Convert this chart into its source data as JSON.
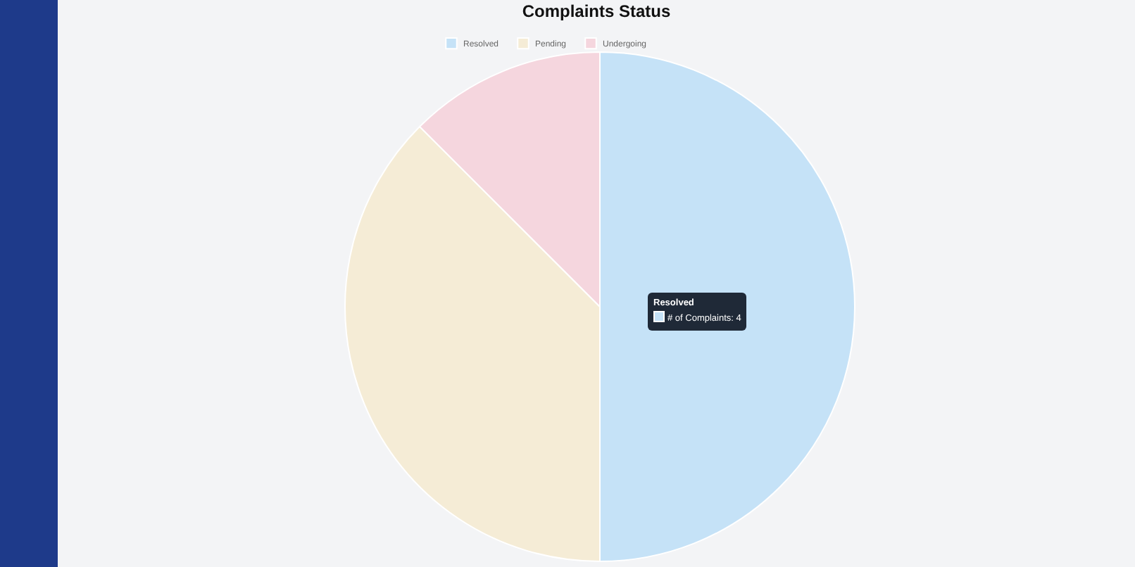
{
  "chart_data": {
    "type": "pie",
    "title": "Complaints Status",
    "categories": [
      "Resolved",
      "Pending",
      "Undergoing"
    ],
    "values": [
      50,
      37.5,
      12.5
    ],
    "colors": [
      "#c5e2f7",
      "#f5ecd6",
      "#f5d6de"
    ],
    "legend": "top",
    "annotations": [
      "Resolved",
      "# of Complaints: 4"
    ]
  }
}
